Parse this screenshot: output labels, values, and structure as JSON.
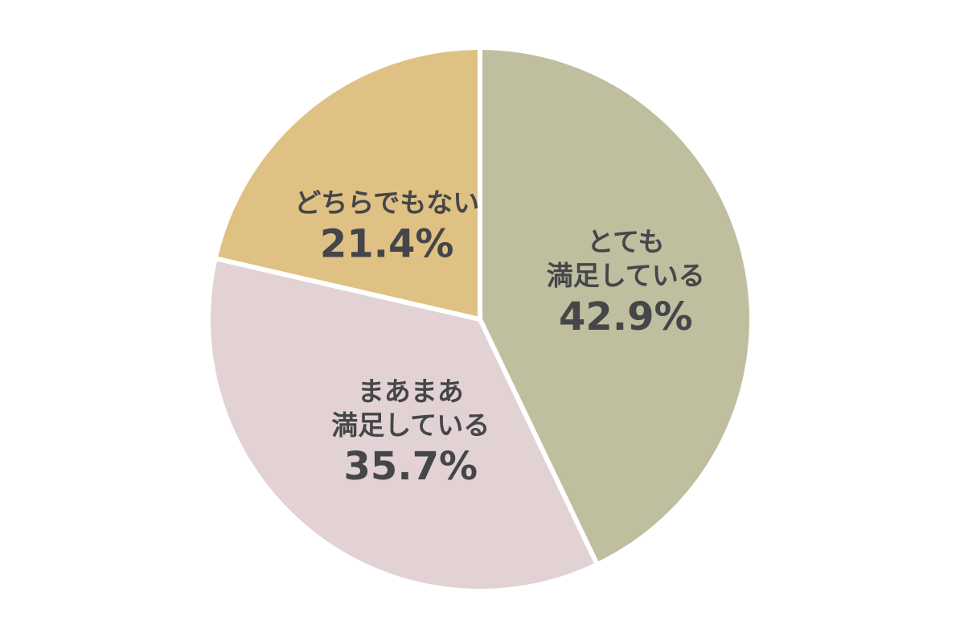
{
  "chart_data": {
    "type": "pie",
    "start_angle_deg": 0,
    "direction": "clockwise",
    "slices": [
      {
        "label_lines": [
          "とても",
          "満足している"
        ],
        "value": 42.9,
        "value_label": "42.9%",
        "color": "#bfbf9f"
      },
      {
        "label_lines": [
          "まあまあ",
          "満足している"
        ],
        "value": 35.7,
        "value_label": "35.7%",
        "color": "#e2d2d4"
      },
      {
        "label_lines": [
          "どちらでもない"
        ],
        "value": 21.4,
        "value_label": "21.4%",
        "color": "#dfc183"
      }
    ]
  }
}
